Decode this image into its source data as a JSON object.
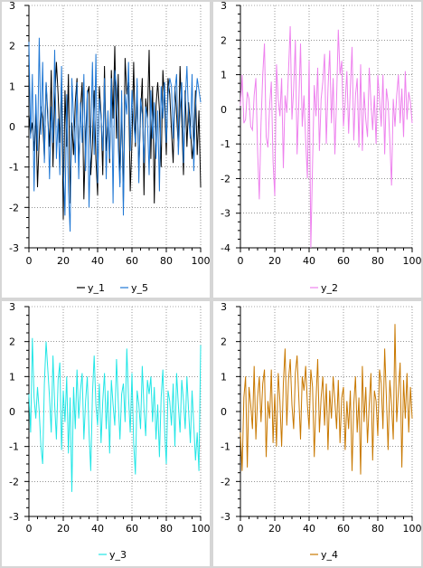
{
  "chart_data": [
    {
      "id": "p1",
      "type": "line",
      "x": [
        0,
        1,
        2,
        3,
        4,
        5,
        6,
        7,
        8,
        9,
        10,
        11,
        12,
        13,
        14,
        15,
        16,
        17,
        18,
        19,
        20,
        21,
        22,
        23,
        24,
        25,
        26,
        27,
        28,
        29,
        30,
        31,
        32,
        33,
        34,
        35,
        36,
        37,
        38,
        39,
        40,
        41,
        42,
        43,
        44,
        45,
        46,
        47,
        48,
        49,
        50,
        51,
        52,
        53,
        54,
        55,
        56,
        57,
        58,
        59,
        60,
        61,
        62,
        63,
        64,
        65,
        66,
        67,
        68,
        69,
        70,
        71,
        72,
        73,
        74,
        75,
        76,
        77,
        78,
        79,
        80,
        81,
        82,
        83,
        84,
        85,
        86,
        87,
        88,
        89,
        90,
        91,
        92,
        93,
        94,
        95,
        96,
        97,
        98,
        99,
        100
      ],
      "xlim": [
        0,
        100
      ],
      "ylim": [
        -3,
        3
      ],
      "xticks": [
        "0",
        "20",
        "40",
        "60",
        "80",
        "100"
      ],
      "yticks": [
        "-3",
        "-2",
        "-1",
        "0",
        "1",
        "2",
        "3"
      ],
      "grid": true,
      "legend": "bottom",
      "series": [
        {
          "name": "y_1",
          "color": "#000000",
          "values": [
            0.3,
            -0.2,
            0.1,
            -0.6,
            0.4,
            -1.5,
            -0.3,
            0.5,
            0.2,
            -0.8,
            1.1,
            0.2,
            -0.5,
            1.4,
            -1.0,
            0.6,
            1.6,
            0.8,
            -0.4,
            1.2,
            -2.3,
            0.9,
            -0.5,
            1.3,
            -1.9,
            0.1,
            -0.7,
            0.6,
            1.2,
            -1.0,
            0.4,
            1.1,
            -1.8,
            -0.3,
            0.8,
            1.0,
            -1.2,
            -0.4,
            0.9,
            -0.8,
            -1.7,
            1.0,
            0.3,
            -1.2,
            1.5,
            -0.6,
            0.2,
            -0.9,
            1.4,
            0.2,
            2.0,
            -0.3,
            1.3,
            -1.4,
            0.6,
            -1.9,
            1.7,
            0.8,
            1.1,
            -1.6,
            -0.4,
            1.6,
            -0.5,
            0.9,
            -1.1,
            0.3,
            1.2,
            -1.7,
            0.7,
            0.2,
            1.9,
            -0.8,
            1.0,
            -1.9,
            0.5,
            1.1,
            0.4,
            -1.0,
            1.4,
            0.6,
            -0.7,
            1.2,
            0.8,
            -0.1,
            -0.9,
            1.0,
            0.3,
            -0.5,
            1.5,
            0.2,
            -1.2,
            0.9,
            -0.5,
            0.6,
            0.0,
            -0.8,
            -0.3,
            0.9,
            -0.7,
            0.4,
            -1.5
          ]
        },
        {
          "name": "y_5",
          "color": "#1f77d4",
          "values": [
            2.1,
            -0.3,
            1.3,
            -1.6,
            0.8,
            -0.6,
            2.2,
            -0.2,
            1.6,
            -0.9,
            1.1,
            0.4,
            -1.3,
            0.5,
            -0.4,
            1.9,
            -0.8,
            0.2,
            -1.2,
            1.5,
            -1.0,
            -2.2,
            0.8,
            -1.6,
            -2.6,
            1.2,
            0.2,
            -0.9,
            1.1,
            -1.3,
            0.6,
            -0.4,
            1.3,
            -1.1,
            0.9,
            -2.0,
            -0.2,
            1.6,
            -0.7,
            1.8,
            -1.4,
            0.7,
            0.2,
            -0.6,
            1.2,
            -1.3,
            0.4,
            -0.8,
            1.2,
            -1.9,
            1.4,
            1.0,
            -0.5,
            -1.5,
            0.9,
            -2.2,
            0.8,
            0.3,
            1.6,
            -0.6,
            0.9,
            0.1,
            -0.4,
            1.2,
            -1.4,
            0.7,
            0.3,
            -0.9,
            0.5,
            0.2,
            -1.2,
            0.9,
            -0.3,
            0.6,
            -0.8,
            0.4,
            -1.6,
            1.0,
            0.2,
            1.1,
            -0.4,
            0.8,
            1.2,
            1.0,
            -0.3,
            0.9,
            1.3,
            -0.7,
            0.4,
            1.1,
            -0.9,
            0.6,
            1.5,
            0.2,
            -0.3,
            1.3,
            -1.1,
            0.5,
            1.2,
            0.9,
            0.6
          ]
        }
      ]
    },
    {
      "id": "p2",
      "type": "line",
      "x": [
        0,
        1,
        2,
        3,
        4,
        5,
        6,
        7,
        8,
        9,
        10,
        11,
        12,
        13,
        14,
        15,
        16,
        17,
        18,
        19,
        20,
        21,
        22,
        23,
        24,
        25,
        26,
        27,
        28,
        29,
        30,
        31,
        32,
        33,
        34,
        35,
        36,
        37,
        38,
        39,
        40,
        41,
        42,
        43,
        44,
        45,
        46,
        47,
        48,
        49,
        50,
        51,
        52,
        53,
        54,
        55,
        56,
        57,
        58,
        59,
        60,
        61,
        62,
        63,
        64,
        65,
        66,
        67,
        68,
        69,
        70,
        71,
        72,
        73,
        74,
        75,
        76,
        77,
        78,
        79,
        80,
        81,
        82,
        83,
        84,
        85,
        86,
        87,
        88,
        89,
        90,
        91,
        92,
        93,
        94,
        95,
        96,
        97,
        98,
        99,
        100
      ],
      "xlim": [
        0,
        100
      ],
      "ylim": [
        -4,
        3
      ],
      "xticks": [
        "0",
        "20",
        "40",
        "60",
        "80",
        "100"
      ],
      "yticks": [
        "-4",
        "-3",
        "-2",
        "-1",
        "0",
        "1",
        "2",
        "3"
      ],
      "grid": true,
      "legend": "bottom",
      "series": [
        {
          "name": "y_2",
          "color": "#ee82ee",
          "values": [
            0.1,
            1.0,
            -0.4,
            -0.3,
            0.5,
            0.3,
            -0.5,
            -0.6,
            0.4,
            0.9,
            -1.2,
            -2.6,
            -0.4,
            1.0,
            1.9,
            -0.8,
            -1.1,
            0.1,
            0.8,
            -1.5,
            -2.5,
            1.3,
            0.3,
            -0.2,
            0.9,
            -1.7,
            0.4,
            -0.1,
            1.1,
            2.4,
            -0.3,
            0.6,
            2.0,
            -1.3,
            0.2,
            1.9,
            -0.5,
            0.4,
            -0.9,
            -2.0,
            1.4,
            -4.0,
            -1.6,
            0.7,
            -0.2,
            1.2,
            -1.2,
            0.3,
            0.8,
            1.6,
            -1.0,
            0.6,
            1.7,
            -0.4,
            0.9,
            -1.3,
            0.3,
            2.3,
            1.0,
            1.4,
            -0.5,
            0.2,
            1.1,
            -0.7,
            0.6,
            1.8,
            -0.9,
            0.4,
            0.9,
            -1.1,
            1.3,
            -1.2,
            0.5,
            -0.3,
            -0.8,
            1.2,
            0.2,
            -0.6,
            0.4,
            -1.0,
            1.0,
            0.3,
            -0.5,
            1.0,
            -1.3,
            0.6,
            0.2,
            -0.9,
            -2.2,
            0.3,
            -0.5,
            0.4,
            1.0,
            -0.4,
            0.6,
            -0.8,
            1.1,
            -0.3,
            0.5,
            0.2,
            -0.4
          ]
        }
      ]
    },
    {
      "id": "p3",
      "type": "line",
      "x": [
        0,
        1,
        2,
        3,
        4,
        5,
        6,
        7,
        8,
        9,
        10,
        11,
        12,
        13,
        14,
        15,
        16,
        17,
        18,
        19,
        20,
        21,
        22,
        23,
        24,
        25,
        26,
        27,
        28,
        29,
        30,
        31,
        32,
        33,
        34,
        35,
        36,
        37,
        38,
        39,
        40,
        41,
        42,
        43,
        44,
        45,
        46,
        47,
        48,
        49,
        50,
        51,
        52,
        53,
        54,
        55,
        56,
        57,
        58,
        59,
        60,
        61,
        62,
        63,
        64,
        65,
        66,
        67,
        68,
        69,
        70,
        71,
        72,
        73,
        74,
        75,
        76,
        77,
        78,
        79,
        80,
        81,
        82,
        83,
        84,
        85,
        86,
        87,
        88,
        89,
        90,
        91,
        92,
        93,
        94,
        95,
        96,
        97,
        98,
        99,
        100
      ],
      "xlim": [
        0,
        100
      ],
      "ylim": [
        -3,
        3
      ],
      "xticks": [
        "0",
        "20",
        "40",
        "60",
        "80",
        "100"
      ],
      "yticks": [
        "-3",
        "-2",
        "-1",
        "0",
        "1",
        "2",
        "3"
      ],
      "grid": true,
      "legend": "bottom",
      "series": [
        {
          "name": "y_3",
          "color": "#22e6e6",
          "values": [
            0.5,
            -0.6,
            2.1,
            0.4,
            -0.2,
            0.7,
            0.0,
            -1.0,
            -1.5,
            0.8,
            2.0,
            1.2,
            0.4,
            -0.6,
            1.6,
            0.2,
            -0.8,
            0.9,
            1.4,
            -1.1,
            0.6,
            -0.3,
            1.0,
            -1.2,
            0.4,
            -2.3,
            0.7,
            -0.5,
            1.2,
            -0.2,
            0.6,
            1.1,
            -0.8,
            0.3,
            1.0,
            -0.6,
            -1.7,
            0.5,
            1.6,
            0.2,
            -0.4,
            0.8,
            -0.9,
            0.3,
            1.1,
            -0.5,
            0.6,
            -1.2,
            0.9,
            0.2,
            -0.4,
            1.5,
            0.3,
            -0.8,
            0.5,
            0.8,
            -0.3,
            1.8,
            0.4,
            -0.6,
            1.1,
            -0.9,
            -1.8,
            0.6,
            0.2,
            -0.5,
            1.3,
            0.1,
            -0.7,
            0.9,
            0.5,
            1.0,
            -0.3,
            0.7,
            -0.8,
            0.2,
            -1.3,
            0.4,
            1.2,
            -0.5,
            -1.5,
            0.6,
            0.3,
            -0.4,
            0.8,
            -1.0,
            1.1,
            0.2,
            -0.6,
            0.9,
            0.3,
            -0.5,
            1.0,
            0.0,
            -0.9,
            0.6,
            -0.4,
            -1.4,
            -0.6,
            -1.7,
            1.9
          ]
        }
      ]
    },
    {
      "id": "p4",
      "type": "line",
      "x": [
        0,
        1,
        2,
        3,
        4,
        5,
        6,
        7,
        8,
        9,
        10,
        11,
        12,
        13,
        14,
        15,
        16,
        17,
        18,
        19,
        20,
        21,
        22,
        23,
        24,
        25,
        26,
        27,
        28,
        29,
        30,
        31,
        32,
        33,
        34,
        35,
        36,
        37,
        38,
        39,
        40,
        41,
        42,
        43,
        44,
        45,
        46,
        47,
        48,
        49,
        50,
        51,
        52,
        53,
        54,
        55,
        56,
        57,
        58,
        59,
        60,
        61,
        62,
        63,
        64,
        65,
        66,
        67,
        68,
        69,
        70,
        71,
        72,
        73,
        74,
        75,
        76,
        77,
        78,
        79,
        80,
        81,
        82,
        83,
        84,
        85,
        86,
        87,
        88,
        89,
        90,
        91,
        92,
        93,
        94,
        95,
        96,
        97,
        98,
        99,
        100
      ],
      "xlim": [
        0,
        100
      ],
      "ylim": [
        -3,
        3
      ],
      "xticks": [
        "0",
        "20",
        "40",
        "60",
        "80",
        "100"
      ],
      "yticks": [
        "-3",
        "-2",
        "-1",
        "0",
        "1",
        "2",
        "3"
      ],
      "grid": true,
      "legend": "bottom",
      "series": [
        {
          "name": "y_4",
          "color": "#c87800",
          "values": [
            -0.6,
            -1.7,
            0.4,
            1.0,
            -1.6,
            0.7,
            0.2,
            -0.5,
            1.3,
            -0.8,
            0.4,
            1.0,
            -0.3,
            0.8,
            1.2,
            -1.3,
            0.3,
            -0.2,
            1.2,
            -0.9,
            0.5,
            -1.0,
            1.1,
            0.3,
            -1.0,
            0.8,
            1.8,
            -0.4,
            0.9,
            1.5,
            0.2,
            -0.5,
            1.1,
            1.6,
            0.4,
            -0.8,
            1.0,
            0.6,
            1.3,
            0.2,
            -0.5,
            1.2,
            0.7,
            -1.3,
            0.3,
            1.5,
            -0.6,
            0.4,
            1.0,
            -0.4,
            0.8,
            -1.1,
            0.6,
            -0.2,
            1.0,
            0.3,
            -0.5,
            0.9,
            -0.9,
            0.4,
            0.7,
            -1.1,
            0.3,
            -0.5,
            0.6,
            -1.7,
            0.2,
            1.0,
            -0.6,
            0.4,
            -1.8,
            1.3,
            -0.3,
            0.7,
            -0.9,
            0.2,
            1.1,
            -1.4,
            0.6,
            0.3,
            -0.7,
            1.2,
            0.8,
            -0.5,
            1.8,
            0.4,
            -1.1,
            0.9,
            0.2,
            -0.8,
            2.5,
            -0.3,
            0.6,
            1.4,
            -1.6,
            0.9,
            -0.2,
            1.1,
            -0.6,
            0.7,
            -0.2
          ]
        }
      ]
    }
  ]
}
